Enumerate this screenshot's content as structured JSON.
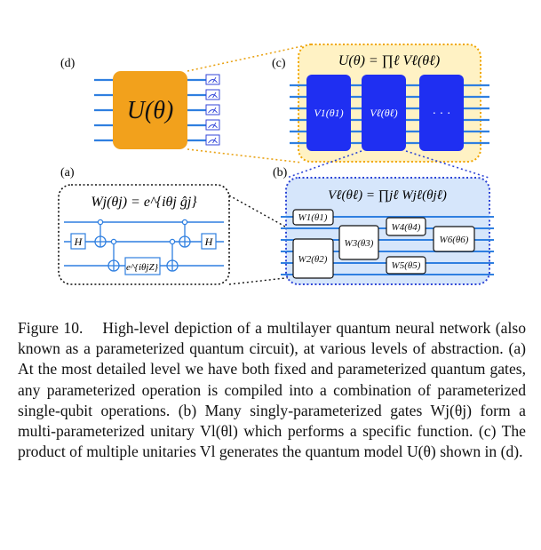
{
  "panels": {
    "d": {
      "label": "(d)",
      "gate": "U(θ)"
    },
    "c": {
      "label": "(c)",
      "title": "U(θ) = ∏ℓ Vℓ(θℓ)",
      "blocks": [
        "V1(θ1)",
        "Vℓ(θℓ)",
        "· · ·"
      ]
    },
    "a": {
      "label": "(a)",
      "title": "Wj(θj) = e^{iθj ĝj}",
      "gates": [
        "H",
        "H",
        "e^{iθjZ}"
      ]
    },
    "b": {
      "label": "(b)",
      "title": "Vℓ(θℓ) = ∏jℓ Wjℓ(θjℓ)",
      "gates": [
        "W1(θ1)",
        "W2(θ2)",
        "W3(θ3)",
        "W4(θ4)",
        "W5(θ5)",
        "W6(θ6)"
      ]
    }
  },
  "colors": {
    "wire": "#2f7fe0",
    "u_gate": "#f2a11c",
    "c_box_fill": "#fff2c4",
    "c_box_border": "#f0a500",
    "v_block": "#1f2ff2",
    "b_box_fill": "#d6e6fb",
    "b_box_border": "#2d45d6",
    "meter": "#3346d8"
  },
  "caption": {
    "label": "Figure 10.",
    "text": "High-level depiction of a multilayer quantum neural network (also known as a parameterized quantum circuit), at various levels of abstraction. (a) At the most detailed level we have both fixed and parameterized quantum gates, any parameterized operation is compiled into a combination of parameterized single-qubit operations. (b) Many singly-parameterized gates Wj(θj) form a multi-parameterized unitary Vl(θl) which performs a specific function. (c) The product of multiple unitaries Vl generates the quantum model U(θ) shown in (d)."
  }
}
